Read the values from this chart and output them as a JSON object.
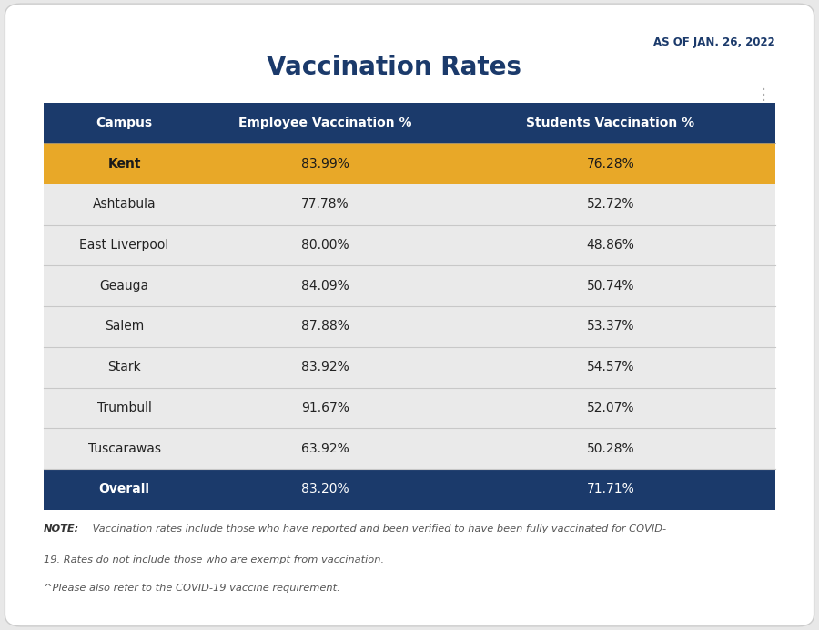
{
  "title": "Vaccination Rates",
  "date_label": "AS OF JAN. 26, 2022",
  "columns": [
    "Campus",
    "Employee Vaccination %",
    "Students Vaccination %"
  ],
  "rows": [
    {
      "campus": "Kent",
      "employee": "83.99%",
      "students": "76.28%",
      "row_type": "kent"
    },
    {
      "campus": "Ashtabula",
      "employee": "77.78%",
      "students": "52.72%",
      "row_type": "normal"
    },
    {
      "campus": "East Liverpool",
      "employee": "80.00%",
      "students": "48.86%",
      "row_type": "normal"
    },
    {
      "campus": "Geauga",
      "employee": "84.09%",
      "students": "50.74%",
      "row_type": "normal"
    },
    {
      "campus": "Salem",
      "employee": "87.88%",
      "students": "53.37%",
      "row_type": "normal"
    },
    {
      "campus": "Stark",
      "employee": "83.92%",
      "students": "54.57%",
      "row_type": "normal"
    },
    {
      "campus": "Trumbull",
      "employee": "91.67%",
      "students": "52.07%",
      "row_type": "normal"
    },
    {
      "campus": "Tuscarawas",
      "employee": "63.92%",
      "students": "50.28%",
      "row_type": "normal"
    },
    {
      "campus": "Overall",
      "employee": "83.20%",
      "students": "71.71%",
      "row_type": "overall"
    }
  ],
  "header_bg": "#1B3A6B",
  "header_text": "#FFFFFF",
  "kent_bg": "#E8A828",
  "kent_text": "#1a1a1a",
  "overall_bg": "#1B3A6B",
  "overall_text": "#FFFFFF",
  "normal_bg": "#EAEAEA",
  "normal_text": "#222222",
  "divider_color": "#C8C8C8",
  "background_color": "#E8E8E8",
  "card_bg": "#FFFFFF",
  "date_color": "#1B3A6B",
  "title_color": "#1B3A6B",
  "note_bold": "NOTE:",
  "note_italic_1": " Vaccination rates include those who have reported and been verified to have been fully vaccinated for COVID-",
  "note_line_2": "19. Rates do not include those who are exempt from vaccination.",
  "note_line_3": "^Please also refer to the COVID-19 vaccine requirement.",
  "col_splits": [
    0.22,
    0.55
  ]
}
